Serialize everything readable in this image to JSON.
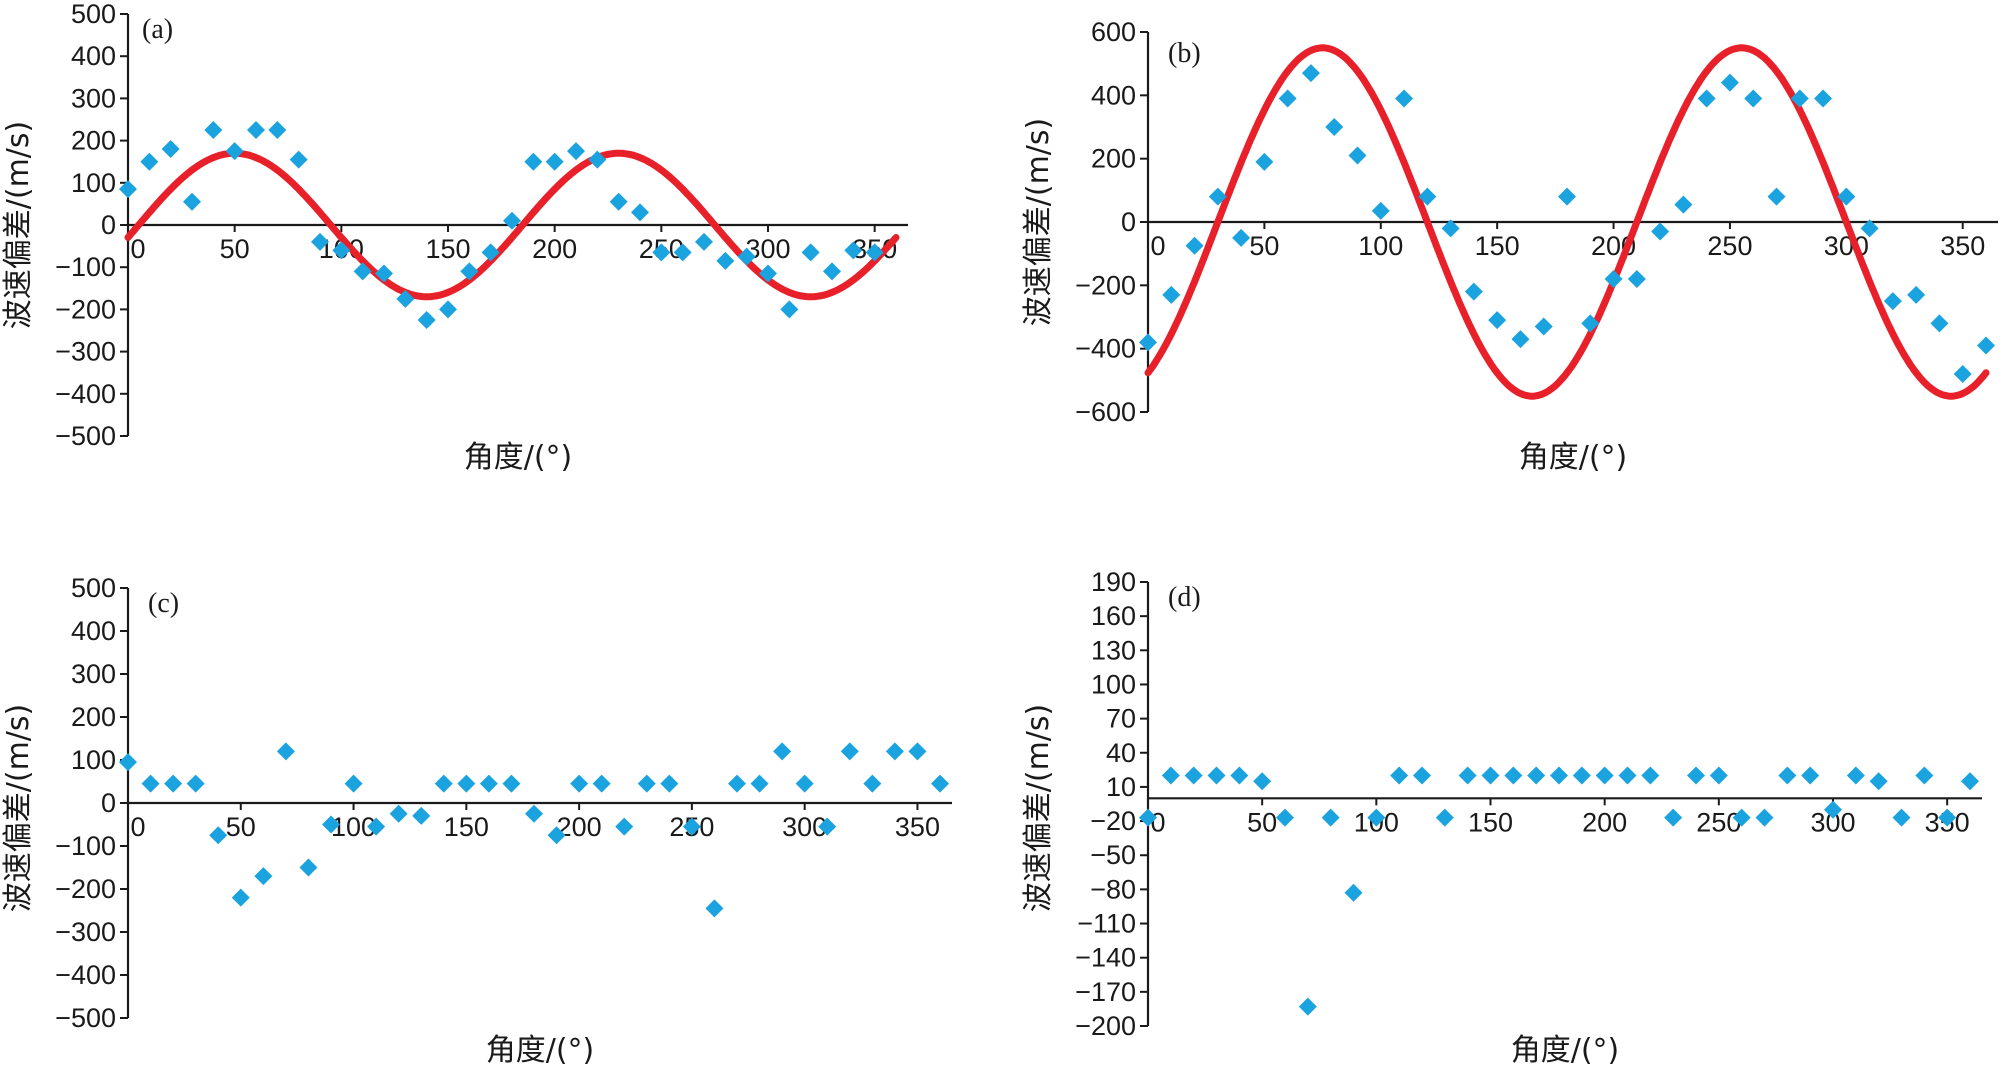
{
  "chart_data": [
    {
      "type": "scatter",
      "panel_label": "(a)",
      "xlabel": "角度/(°)",
      "ylabel": "波速偏差/(m/s)",
      "xlim": [
        0,
        360
      ],
      "ylim": [
        -500,
        500
      ],
      "xticks": [
        "0",
        "50",
        "100",
        "150",
        "200",
        "250",
        "300",
        "350"
      ],
      "yticks": [
        "500",
        "400",
        "300",
        "200",
        "100",
        "0",
        "−100",
        "−200",
        "−300",
        "−400",
        "−500"
      ],
      "grid": false,
      "series": [
        {
          "kind": "points",
          "color": "#1ba3e0",
          "x": [
            0,
            10,
            20,
            30,
            40,
            50,
            60,
            70,
            80,
            90,
            100,
            110,
            120,
            130,
            140,
            150,
            160,
            170,
            180,
            190,
            200,
            210,
            220,
            230,
            240,
            250,
            260,
            270,
            280,
            290,
            300,
            310,
            320,
            330,
            340,
            350
          ],
          "y": [
            85,
            150,
            180,
            55,
            225,
            175,
            225,
            225,
            155,
            -40,
            -60,
            -110,
            -115,
            -175,
            -225,
            -200,
            -110,
            -65,
            10,
            150,
            150,
            175,
            155,
            55,
            30,
            -65,
            -65,
            -40,
            -85,
            -75,
            -115,
            -200,
            -65,
            -110,
            -60,
            -65
          ]
        },
        {
          "kind": "line",
          "color": "#e8202a",
          "function": "sin",
          "amplitude": 170,
          "period_deg": 180,
          "zero_crossing_deg": 5,
          "x_range": [
            0,
            360
          ]
        }
      ]
    },
    {
      "type": "scatter",
      "panel_label": "(b)",
      "xlabel": "角度/(°)",
      "ylabel": "波速偏差/(m/s)",
      "xlim": [
        0,
        360
      ],
      "ylim": [
        -600,
        600
      ],
      "xticks": [
        "0",
        "50",
        "100",
        "150",
        "200",
        "250",
        "300",
        "350"
      ],
      "yticks": [
        "600",
        "400",
        "200",
        "0",
        "−200",
        "−400",
        "−600"
      ],
      "grid": false,
      "series": [
        {
          "kind": "points",
          "color": "#1ba3e0",
          "x": [
            0,
            10,
            20,
            30,
            40,
            50,
            60,
            70,
            80,
            90,
            100,
            110,
            120,
            130,
            140,
            150,
            160,
            170,
            180,
            190,
            200,
            210,
            220,
            230,
            240,
            250,
            260,
            270,
            280,
            290,
            300,
            310,
            320,
            330,
            340,
            350,
            360
          ],
          "y": [
            -380,
            -230,
            -75,
            80,
            -50,
            190,
            390,
            470,
            300,
            210,
            35,
            390,
            80,
            -20,
            -220,
            -310,
            -370,
            -330,
            80,
            -320,
            -180,
            -180,
            -30,
            55,
            390,
            440,
            390,
            80,
            390,
            390,
            80,
            -20,
            -250,
            -230,
            -320,
            -480,
            -390
          ]
        },
        {
          "kind": "line",
          "color": "#e8202a",
          "function": "sin",
          "amplitude": 550,
          "period_deg": 180,
          "zero_crossing_deg": 30,
          "x_range": [
            0,
            360
          ]
        }
      ]
    },
    {
      "type": "scatter",
      "panel_label": "(c)",
      "xlabel": "角度/(°)",
      "ylabel": "波速偏差/(m/s)",
      "xlim": [
        0,
        360
      ],
      "ylim": [
        -500,
        500
      ],
      "xticks": [
        "0",
        "50",
        "100",
        "150",
        "200",
        "250",
        "300",
        "350"
      ],
      "yticks": [
        "500",
        "400",
        "300",
        "200",
        "100",
        "0",
        "−100",
        "−200",
        "−300",
        "−400",
        "−500"
      ],
      "grid": false,
      "series": [
        {
          "kind": "points",
          "color": "#1ba3e0",
          "x": [
            0,
            10,
            20,
            30,
            40,
            50,
            60,
            70,
            80,
            90,
            100,
            110,
            120,
            130,
            140,
            150,
            160,
            170,
            180,
            190,
            200,
            210,
            220,
            230,
            240,
            250,
            260,
            270,
            280,
            290,
            300,
            310,
            320,
            330,
            340,
            350,
            360
          ],
          "y": [
            95,
            45,
            45,
            45,
            -75,
            -220,
            -170,
            120,
            -150,
            -50,
            45,
            -55,
            -25,
            -30,
            45,
            45,
            45,
            45,
            -25,
            -75,
            45,
            45,
            -55,
            45,
            45,
            -55,
            -245,
            45,
            45,
            120,
            45,
            -55,
            120,
            45,
            120,
            120,
            45
          ]
        }
      ]
    },
    {
      "type": "scatter",
      "panel_label": "(d)",
      "xlabel": "角度/(°)",
      "ylabel": "波速偏差/(m/s)",
      "xlim": [
        0,
        360
      ],
      "ylim": [
        -200,
        190
      ],
      "xticks": [
        "0",
        "50",
        "100",
        "150",
        "200",
        "250",
        "300",
        "350"
      ],
      "yticks": [
        "190",
        "160",
        "130",
        "100",
        "70",
        "40",
        "10",
        "−20",
        "−50",
        "−80",
        "−110",
        "−140",
        "−170",
        "−200"
      ],
      "grid": false,
      "series": [
        {
          "kind": "points",
          "color": "#1ba3e0",
          "x": [
            0,
            10,
            20,
            30,
            40,
            50,
            60,
            70,
            80,
            90,
            100,
            110,
            120,
            130,
            140,
            150,
            160,
            170,
            180,
            190,
            200,
            210,
            220,
            230,
            240,
            250,
            260,
            270,
            280,
            290,
            300,
            310,
            320,
            330,
            340,
            350,
            360
          ],
          "y": [
            -17,
            20,
            20,
            20,
            20,
            15,
            -17,
            -183,
            -17,
            -83,
            -17,
            20,
            20,
            -17,
            20,
            20,
            20,
            20,
            20,
            20,
            20,
            20,
            20,
            -17,
            20,
            20,
            -17,
            -17,
            20,
            20,
            -10,
            20,
            15,
            -17,
            20,
            -17,
            15
          ]
        }
      ]
    }
  ]
}
